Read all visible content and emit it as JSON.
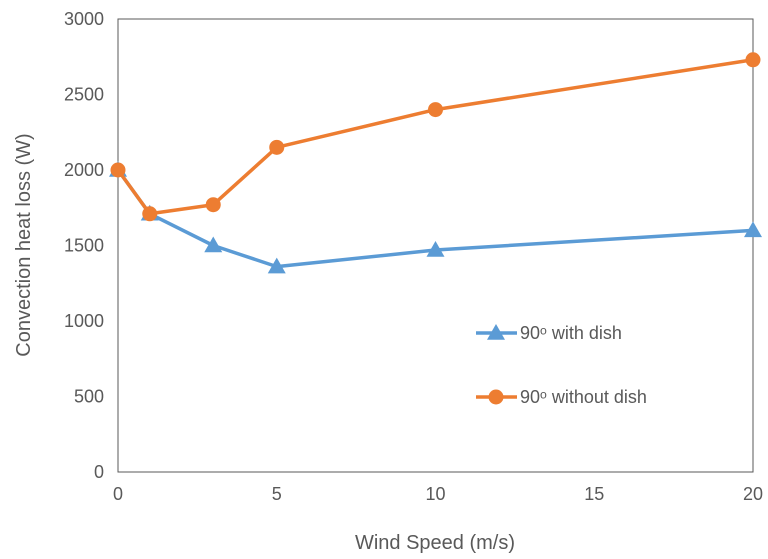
{
  "chart_data": {
    "type": "line",
    "x": [
      0,
      1,
      3,
      5,
      10,
      20
    ],
    "x_tick_values": [
      0,
      5,
      10,
      15,
      20
    ],
    "x_tick_labels": [
      "0",
      "5",
      "10",
      "15",
      "20"
    ],
    "xlim": [
      0,
      20
    ],
    "y_tick_values": [
      0,
      500,
      1000,
      1500,
      2000,
      2500,
      3000
    ],
    "y_tick_labels": [
      "0",
      "500",
      "1000",
      "1500",
      "2000",
      "2500",
      "3000"
    ],
    "ylim": [
      0,
      3000
    ],
    "xlabel": "Wind Speed (m/s)",
    "ylabel": "Convection heat loss (W)",
    "grid": false,
    "legend_position": "right",
    "series": [
      {
        "name": "90ᵒ with dish",
        "values": [
          2000,
          1710,
          1500,
          1360,
          1470,
          1600
        ],
        "color": "#5b9bd5",
        "marker": "triangle"
      },
      {
        "name": "90ᵒ without dish",
        "values": [
          2000,
          1710,
          1770,
          2150,
          2400,
          2730
        ],
        "color": "#ed7d31",
        "marker": "circle"
      }
    ]
  }
}
